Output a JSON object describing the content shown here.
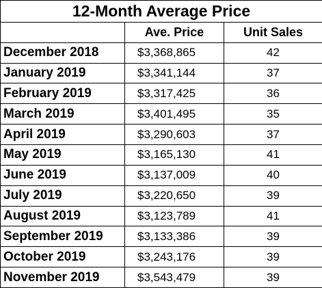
{
  "table": {
    "title": "12-Month Average Price",
    "headers": [
      "",
      "Ave. Price",
      "Unit Sales"
    ],
    "rows": [
      {
        "month": "December 2018",
        "price": "$3,368,865",
        "units": "42"
      },
      {
        "month": "January 2019",
        "price": "$3,341,144",
        "units": "37"
      },
      {
        "month": "February 2019",
        "price": "$3,317,425",
        "units": "36"
      },
      {
        "month": "March 2019",
        "price": "$3,401,495",
        "units": "35"
      },
      {
        "month": "April 2019",
        "price": "$3,290,603",
        "units": "37"
      },
      {
        "month": "May 2019",
        "price": "$3,165,130",
        "units": "41"
      },
      {
        "month": "June 2019",
        "price": "$3,137,009",
        "units": "40"
      },
      {
        "month": "July 2019",
        "price": "$3,220,650",
        "units": "39"
      },
      {
        "month": "August 2019",
        "price": "$3,123,789",
        "units": "41"
      },
      {
        "month": "September 2019",
        "price": "$3,133,386",
        "units": "39"
      },
      {
        "month": "October 2019",
        "price": "$3,243,176",
        "units": "39"
      },
      {
        "month": "November 2019",
        "price": "$3,543,479",
        "units": "39"
      }
    ]
  }
}
